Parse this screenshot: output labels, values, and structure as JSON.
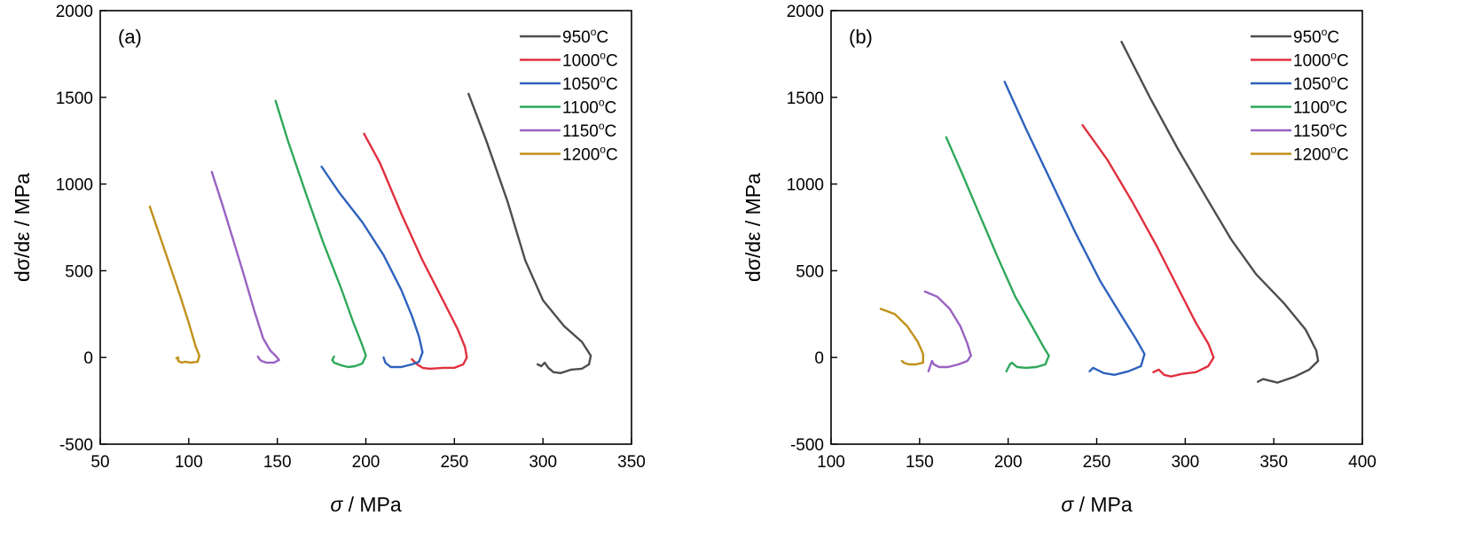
{
  "chart_data": [
    {
      "type": "line",
      "panel_label": "(a)",
      "xlabel_sym": "σ",
      "xlabel_unit": " / MPa",
      "ylabel_pre": "dσ/dε",
      "ylabel_unit": " / MPa",
      "xlim": [
        50,
        350
      ],
      "ylim": [
        -500,
        2000
      ],
      "xticks": [
        "50",
        "100",
        "150",
        "200",
        "250",
        "300",
        "350"
      ],
      "yticks": [
        "-500",
        "0",
        "500",
        "1000",
        "1500",
        "2000"
      ],
      "grid": false,
      "legend_position": "top-right",
      "series": [
        {
          "name": "950",
          "unit": "C",
          "color": "#4d4d4d",
          "points": [
            [
              258,
              1520
            ],
            [
              268,
              1250
            ],
            [
              280,
              900
            ],
            [
              290,
              560
            ],
            [
              300,
              330
            ],
            [
              312,
              180
            ],
            [
              322,
              90
            ],
            [
              327,
              10
            ],
            [
              326,
              -40
            ],
            [
              322,
              -65
            ],
            [
              316,
              -70
            ],
            [
              310,
              -90
            ],
            [
              306,
              -85
            ],
            [
              303,
              -60
            ],
            [
              301,
              -30
            ],
            [
              299,
              -50
            ],
            [
              297,
              -40
            ]
          ]
        },
        {
          "name": "1000",
          "unit": "C",
          "color": "#e0303f",
          "points": [
            [
              199,
              1290
            ],
            [
              208,
              1120
            ],
            [
              220,
              830
            ],
            [
              232,
              560
            ],
            [
              244,
              320
            ],
            [
              252,
              160
            ],
            [
              256,
              60
            ],
            [
              257,
              0
            ],
            [
              255,
              -40
            ],
            [
              250,
              -60
            ],
            [
              244,
              -60
            ],
            [
              236,
              -65
            ],
            [
              232,
              -60
            ],
            [
              229,
              -40
            ],
            [
              226,
              -10
            ]
          ]
        },
        {
          "name": "1050",
          "unit": "C",
          "color": "#2e62bd",
          "points": [
            [
              175,
              1100
            ],
            [
              185,
              950
            ],
            [
              198,
              780
            ],
            [
              210,
              590
            ],
            [
              220,
              390
            ],
            [
              226,
              240
            ],
            [
              230,
              120
            ],
            [
              232,
              30
            ],
            [
              230,
              -25
            ],
            [
              226,
              -40
            ],
            [
              220,
              -55
            ],
            [
              214,
              -55
            ],
            [
              211,
              -30
            ],
            [
              210,
              0
            ]
          ]
        },
        {
          "name": "1100",
          "unit": "C",
          "color": "#2fa85a",
          "points": [
            [
              149,
              1480
            ],
            [
              156,
              1250
            ],
            [
              166,
              950
            ],
            [
              176,
              660
            ],
            [
              186,
              400
            ],
            [
              193,
              200
            ],
            [
              198,
              70
            ],
            [
              200,
              10
            ],
            [
              198,
              -35
            ],
            [
              194,
              -50
            ],
            [
              190,
              -55
            ],
            [
              186,
              -45
            ],
            [
              182,
              -30
            ],
            [
              181,
              -15
            ],
            [
              182,
              5
            ]
          ]
        },
        {
          "name": "1150",
          "unit": "C",
          "color": "#9a61c2",
          "points": [
            [
              113,
              1070
            ],
            [
              119,
              880
            ],
            [
              125,
              680
            ],
            [
              131,
              480
            ],
            [
              137,
              270
            ],
            [
              142,
              110
            ],
            [
              146,
              40
            ],
            [
              149,
              10
            ],
            [
              151,
              -15
            ],
            [
              148,
              -30
            ],
            [
              144,
              -30
            ],
            [
              141,
              -20
            ],
            [
              140,
              -10
            ],
            [
              139,
              5
            ]
          ]
        },
        {
          "name": "1200",
          "unit": "C",
          "color": "#c09019",
          "points": [
            [
              78,
              870
            ],
            [
              83,
              720
            ],
            [
              89,
              540
            ],
            [
              95,
              360
            ],
            [
              100,
              200
            ],
            [
              104,
              60
            ],
            [
              106,
              10
            ],
            [
              105,
              -25
            ],
            [
              101,
              -30
            ],
            [
              98,
              -25
            ],
            [
              96,
              -30
            ],
            [
              94,
              -20
            ],
            [
              94,
              0
            ],
            [
              93,
              -5
            ]
          ]
        }
      ]
    },
    {
      "type": "line",
      "panel_label": "(b)",
      "xlabel_sym": "σ",
      "xlabel_unit": " / MPa",
      "ylabel_pre": "dσ/dε",
      "ylabel_unit": " / MPa",
      "xlim": [
        100,
        400
      ],
      "ylim": [
        -500,
        2000
      ],
      "xticks": [
        "100",
        "150",
        "200",
        "250",
        "300",
        "350",
        "400"
      ],
      "yticks": [
        "-500",
        "0",
        "500",
        "1000",
        "1500",
        "2000"
      ],
      "grid": false,
      "legend_position": "top-right",
      "series": [
        {
          "name": "950",
          "unit": "C",
          "color": "#4d4d4d",
          "points": [
            [
              264,
              1820
            ],
            [
              280,
              1500
            ],
            [
              296,
              1200
            ],
            [
              312,
              920
            ],
            [
              326,
              680
            ],
            [
              340,
              480
            ],
            [
              356,
              310
            ],
            [
              368,
              160
            ],
            [
              374,
              40
            ],
            [
              375,
              -20
            ],
            [
              370,
              -70
            ],
            [
              362,
              -110
            ],
            [
              352,
              -145
            ],
            [
              344,
              -125
            ],
            [
              341,
              -140
            ]
          ]
        },
        {
          "name": "1000",
          "unit": "C",
          "color": "#e0303f",
          "points": [
            [
              242,
              1340
            ],
            [
              256,
              1140
            ],
            [
              270,
              900
            ],
            [
              284,
              640
            ],
            [
              296,
              400
            ],
            [
              306,
              200
            ],
            [
              313,
              80
            ],
            [
              316,
              0
            ],
            [
              313,
              -50
            ],
            [
              306,
              -85
            ],
            [
              298,
              -95
            ],
            [
              292,
              -110
            ],
            [
              288,
              -100
            ],
            [
              285,
              -70
            ],
            [
              282,
              -85
            ]
          ]
        },
        {
          "name": "1050",
          "unit": "C",
          "color": "#2e62bd",
          "points": [
            [
              198,
              1590
            ],
            [
              210,
              1320
            ],
            [
              224,
              1020
            ],
            [
              238,
              720
            ],
            [
              252,
              440
            ],
            [
              264,
              240
            ],
            [
              272,
              110
            ],
            [
              277,
              20
            ],
            [
              275,
              -50
            ],
            [
              268,
              -80
            ],
            [
              260,
              -100
            ],
            [
              254,
              -90
            ],
            [
              250,
              -70
            ],
            [
              248,
              -60
            ],
            [
              246,
              -80
            ]
          ]
        },
        {
          "name": "1100",
          "unit": "C",
          "color": "#2fa85a",
          "points": [
            [
              165,
              1270
            ],
            [
              174,
              1060
            ],
            [
              184,
              820
            ],
            [
              194,
              580
            ],
            [
              204,
              350
            ],
            [
              214,
              170
            ],
            [
              220,
              60
            ],
            [
              223,
              10
            ],
            [
              221,
              -40
            ],
            [
              216,
              -55
            ],
            [
              210,
              -60
            ],
            [
              205,
              -55
            ],
            [
              202,
              -30
            ],
            [
              201,
              -40
            ],
            [
              199,
              -80
            ]
          ]
        },
        {
          "name": "1150",
          "unit": "C",
          "color": "#9a61c2",
          "points": [
            [
              153,
              380
            ],
            [
              160,
              350
            ],
            [
              167,
              280
            ],
            [
              173,
              180
            ],
            [
              177,
              80
            ],
            [
              179,
              10
            ],
            [
              177,
              -20
            ],
            [
              172,
              -40
            ],
            [
              166,
              -55
            ],
            [
              161,
              -55
            ],
            [
              158,
              -40
            ],
            [
              157,
              -20
            ],
            [
              156,
              -50
            ],
            [
              155,
              -80
            ]
          ]
        },
        {
          "name": "1200",
          "unit": "C",
          "color": "#c09019",
          "points": [
            [
              128,
              280
            ],
            [
              136,
              250
            ],
            [
              143,
              180
            ],
            [
              149,
              90
            ],
            [
              152,
              20
            ],
            [
              152,
              -30
            ],
            [
              148,
              -40
            ],
            [
              144,
              -40
            ],
            [
              141,
              -30
            ],
            [
              140,
              -20
            ]
          ]
        }
      ]
    }
  ]
}
